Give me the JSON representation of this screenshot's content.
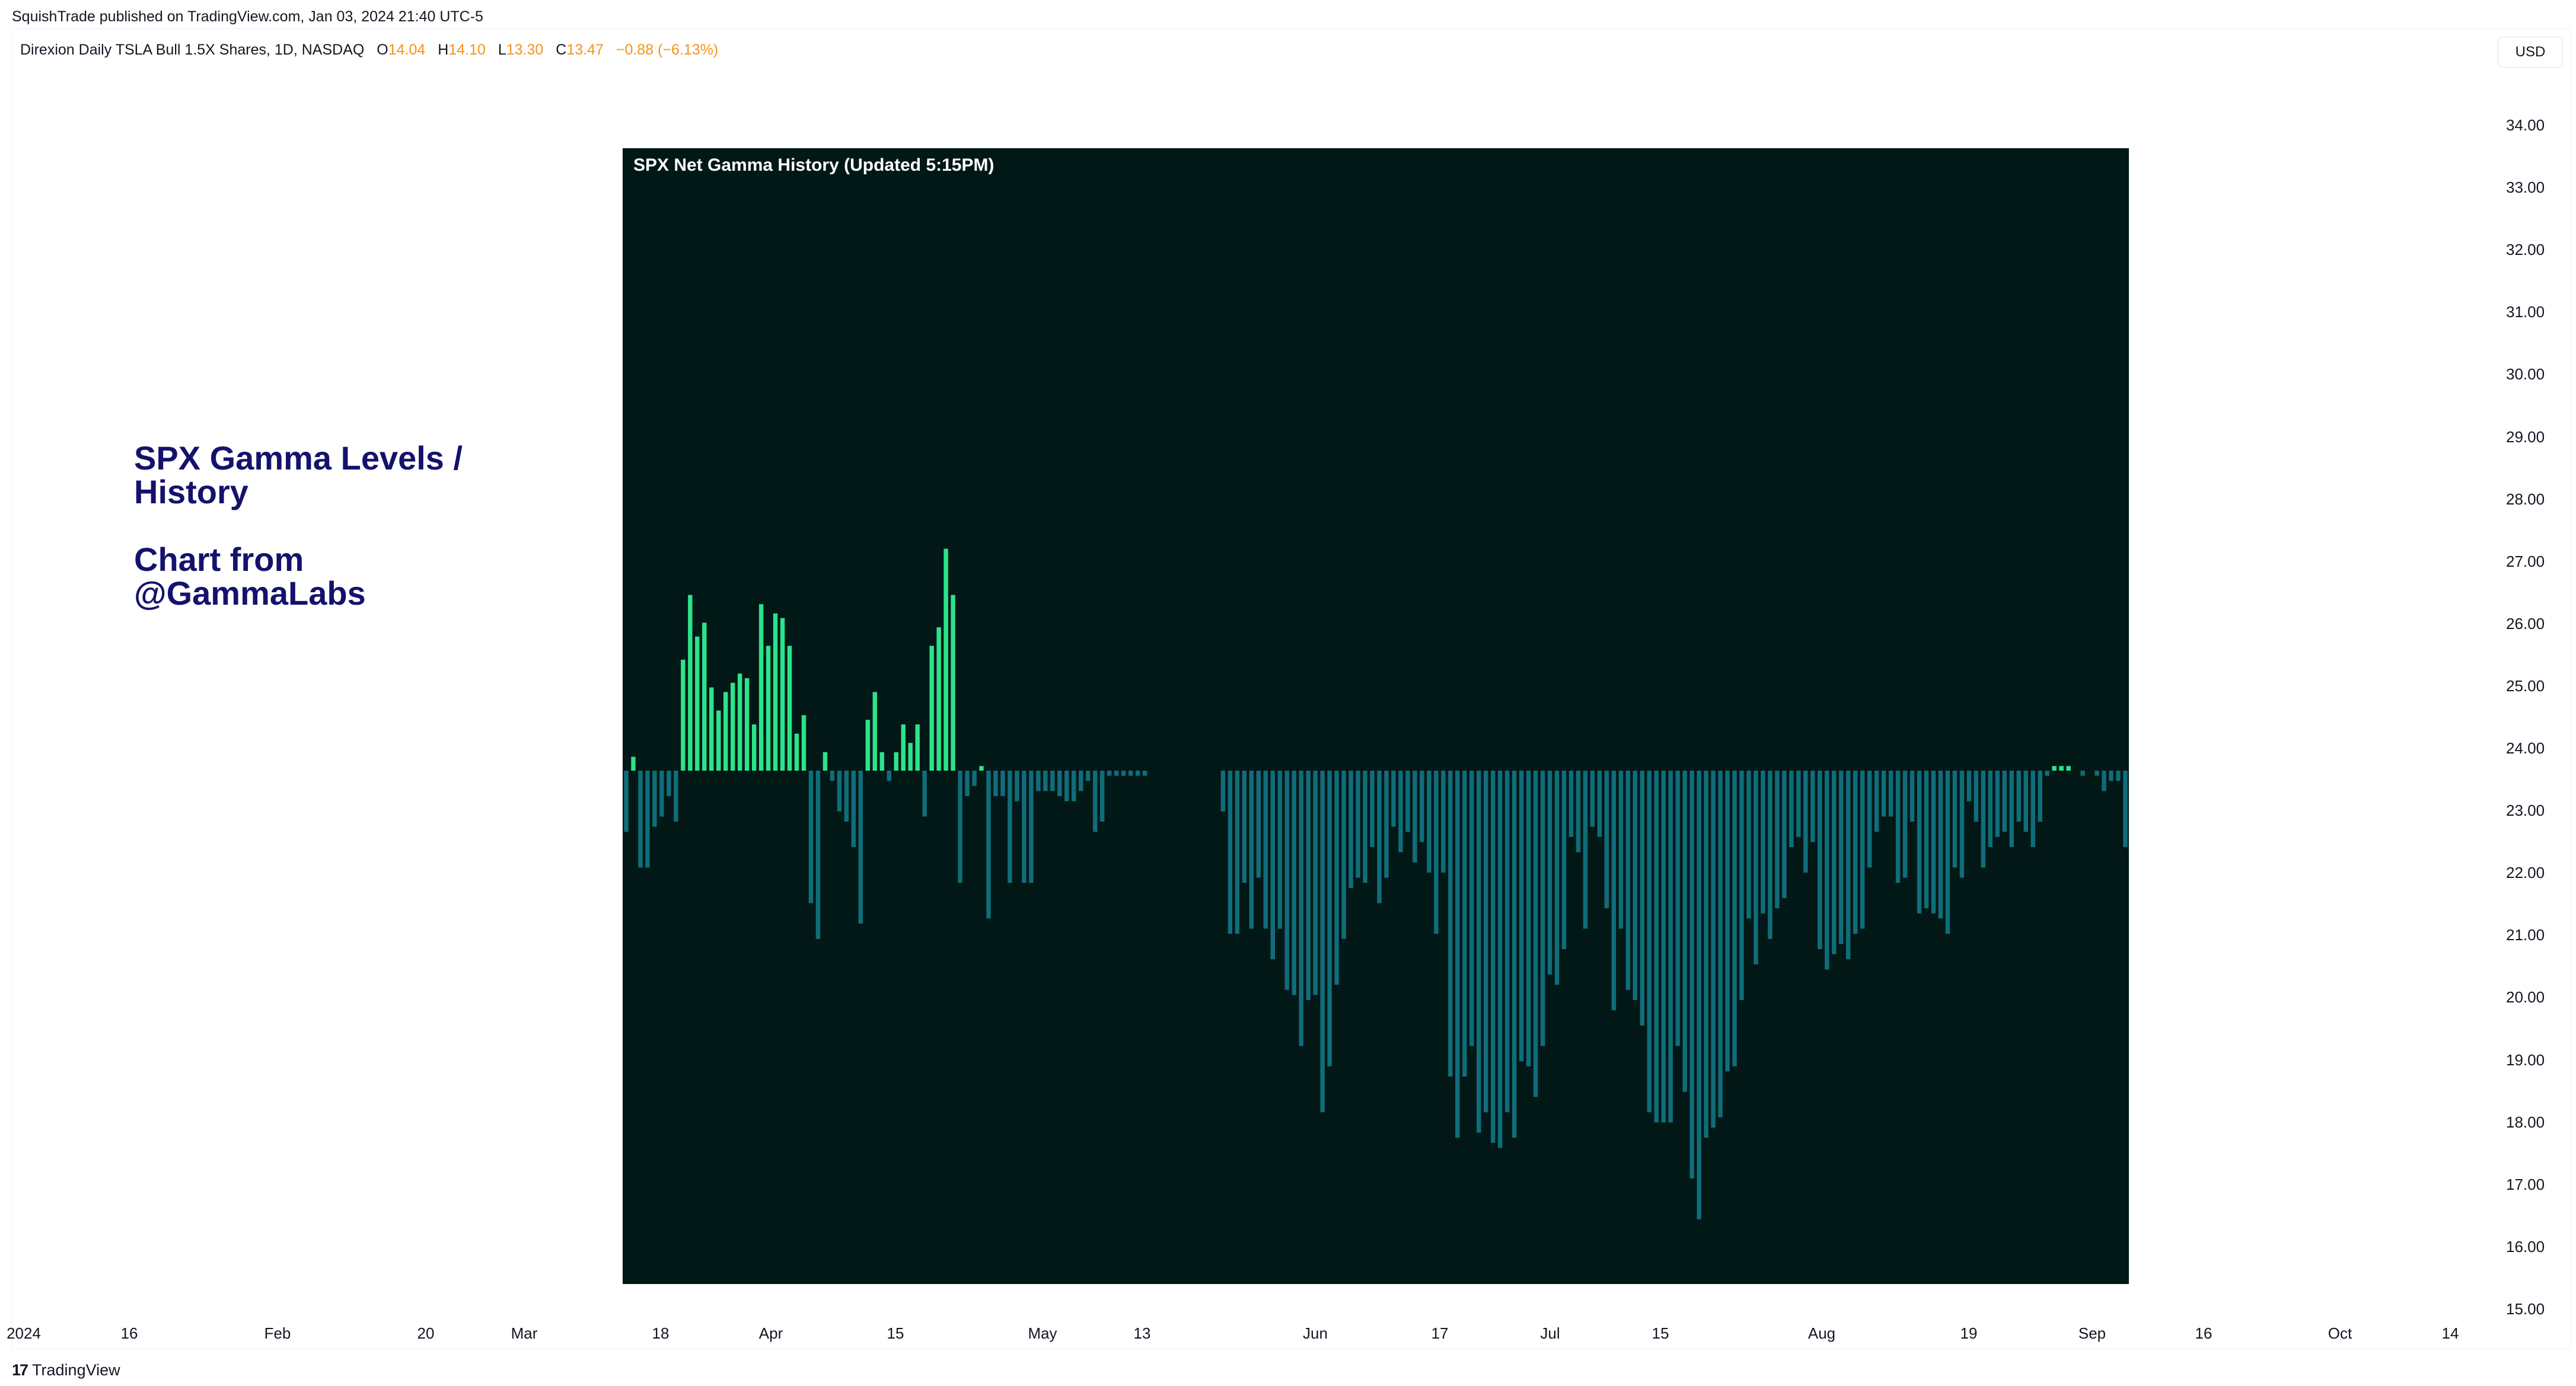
{
  "publisher_line": "SquishTrade published on TradingView.com, Jan 03, 2024 21:40 UTC-5",
  "symbol": {
    "name": "Direxion Daily TSLA Bull 1.5X Shares, 1D, NASDAQ",
    "o_label": "O",
    "o_value": "14.04",
    "h_label": "H",
    "h_value": "14.10",
    "l_label": "L",
    "l_value": "13.30",
    "c_label": "C",
    "c_value": "13.47",
    "change": "−0.88 (−6.13%)"
  },
  "currency_button": "USD",
  "y_axis": {
    "labels": [
      "34.00",
      "33.00",
      "32.00",
      "31.00",
      "30.00",
      "29.00",
      "28.00",
      "27.00",
      "26.00",
      "25.00",
      "24.00",
      "23.00",
      "22.00",
      "21.00",
      "20.00",
      "19.00",
      "18.00",
      "17.00",
      "16.00",
      "15.00"
    ],
    "values": [
      34,
      33,
      32,
      31,
      30,
      29,
      28,
      27,
      26,
      25,
      24,
      23,
      22,
      21,
      20,
      19,
      18,
      17,
      16,
      15
    ]
  },
  "x_axis": {
    "labels": [
      "2024",
      "16",
      "Feb",
      "20",
      "Mar",
      "18",
      "Apr",
      "15",
      "May",
      "13",
      "Jun",
      "17",
      "Jul",
      "15",
      "Aug",
      "19",
      "Sep",
      "16",
      "Oct",
      "14"
    ]
  },
  "annotation": {
    "line1": "SPX Gamma Levels /",
    "line2": "History",
    "line3": "Chart from",
    "line4": "@GammaLabs"
  },
  "footer_logo": "TradingView",
  "logo_mark": "17",
  "colors": {
    "positive": "#2be38a",
    "negative": "#106d7a",
    "panel_bg": "#021817",
    "price_label": "#f7931a",
    "annotation": "#14126b"
  },
  "chart_data": {
    "type": "bar",
    "title": "SPX Net Gamma History (Updated 5:15PM)",
    "xlabel": "",
    "ylabel": "",
    "grid": false,
    "legend": "none",
    "ylim": [
      -100,
      100
    ],
    "values": [
      -12,
      3,
      -19,
      -19,
      -11,
      -9,
      -5,
      -10,
      24,
      38,
      29,
      32,
      18,
      13,
      17,
      19,
      21,
      20,
      10,
      36,
      27,
      34,
      33,
      27,
      8,
      12,
      -26,
      -33,
      4,
      -2,
      -8,
      -10,
      -15,
      -30,
      11,
      17,
      4,
      -2,
      4,
      10,
      6,
      10,
      -9,
      27,
      31,
      48,
      38,
      -22,
      -5,
      -3,
      1,
      -29,
      -5,
      -5,
      -22,
      -6,
      -22,
      -22,
      -4,
      -4,
      -4,
      -5,
      -6,
      -6,
      -4,
      -2,
      -12,
      -10,
      -1,
      -1,
      -1,
      -1,
      -1,
      -1,
      0,
      0,
      0,
      0,
      0,
      0,
      0,
      0,
      0,
      0,
      -8,
      -32,
      -32,
      -22,
      -31,
      -21,
      -31,
      -37,
      -31,
      -43,
      -44,
      -54,
      -45,
      -44,
      -67,
      -58,
      -42,
      -33,
      -23,
      -21,
      -22,
      -15,
      -26,
      -21,
      -11,
      -16,
      -12,
      -18,
      -14,
      -20,
      -32,
      -20,
      -60,
      -72,
      -60,
      -54,
      -71,
      -67,
      -73,
      -74,
      -67,
      -72,
      -57,
      -58,
      -64,
      -54,
      -40,
      -42,
      -35,
      -13,
      -16,
      -31,
      -11,
      -13,
      -27,
      -47,
      -31,
      -43,
      -45,
      -50,
      -67,
      -69,
      -69,
      -69,
      -54,
      -63,
      -80,
      -88,
      -72,
      -70,
      -68,
      -59,
      -58,
      -45,
      -29,
      -38,
      -28,
      -33,
      -27,
      -25,
      -15,
      -13,
      -20,
      -14,
      -35,
      -39,
      -36,
      -34,
      -37,
      -32,
      -31,
      -19,
      -12,
      -9,
      -9,
      -22,
      -21,
      -10,
      -28,
      -27,
      -28,
      -29,
      -32,
      -19,
      -21,
      -6,
      -10,
      -19,
      -15,
      -13,
      -12,
      -15,
      -10,
      -12,
      -15,
      -10,
      -1,
      1,
      1,
      1,
      0,
      -1,
      0,
      -1,
      -4,
      -2,
      -2,
      -15
    ],
    "note": "single series of daily net gamma bars; positive green, negative teal"
  }
}
